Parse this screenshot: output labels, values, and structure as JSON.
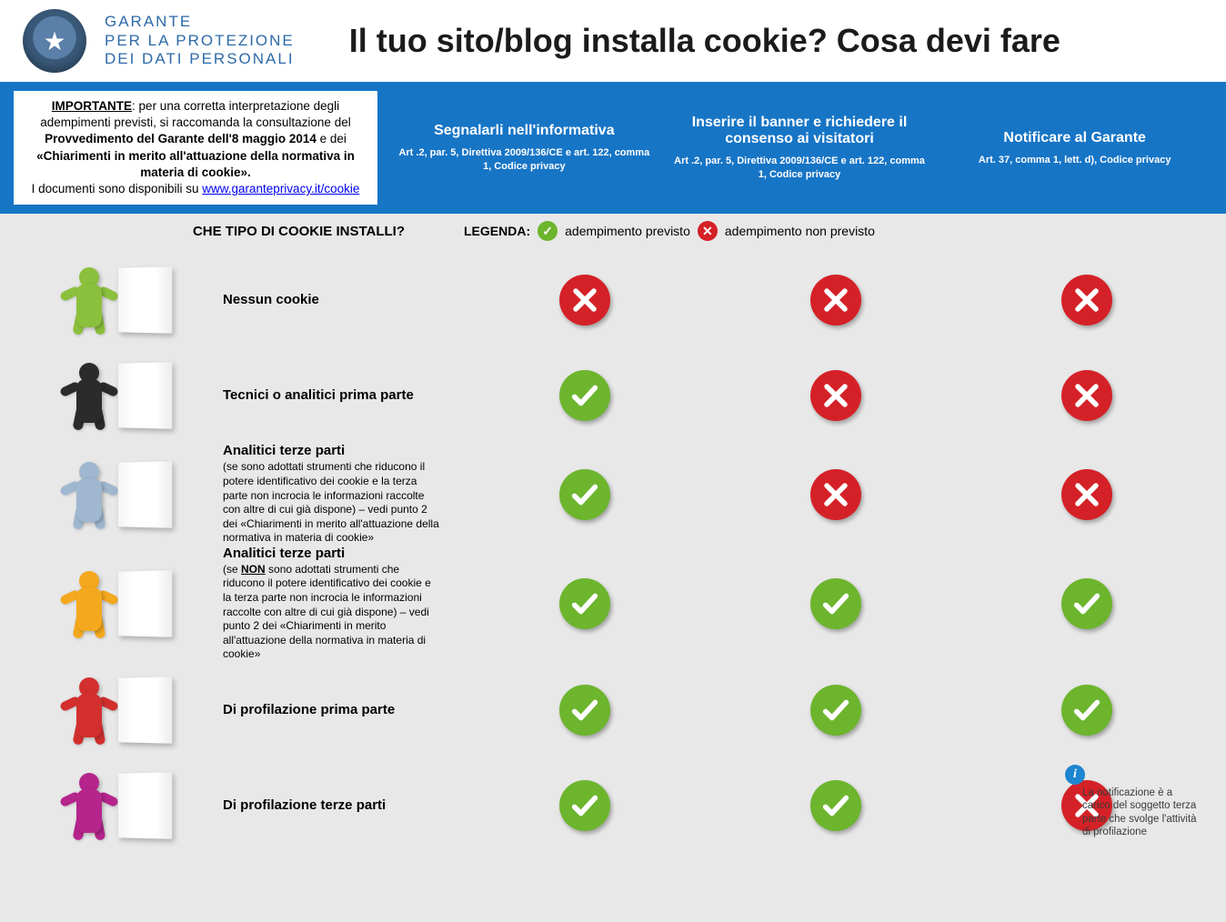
{
  "colors": {
    "blue_bar": "#1775c6",
    "green": "#6cb52d",
    "red": "#d42127",
    "bg": "#e8e8e8",
    "agency_blue": "#2d6aa8"
  },
  "header": {
    "agency_line1": "GARANTE",
    "agency_line2": "PER LA PROTEZIONE",
    "agency_line3": "DEI DATI PERSONALI",
    "title": "Il tuo sito/blog installa cookie? Cosa devi fare"
  },
  "note": {
    "lead": "IMPORTANTE",
    "text1": ": per una corretta interpretazione degli adempimenti previsti, si raccomanda la consultazione del ",
    "bold1": "Provvedimento del Garante dell'8 maggio 2014",
    "text2": " e dei ",
    "bold2": "«Chiarimenti in merito all'attuazione della normativa in materia di cookie».",
    "text3": "I documenti sono disponibili su ",
    "link": "www.garanteprivacy.it/cookie"
  },
  "columns": [
    {
      "title": "Segnalarli nell'informativa",
      "sub": "Art .2, par. 5, Direttiva 2009/136/CE e art. 122, comma 1, Codice privacy"
    },
    {
      "title": "Inserire il banner e richiedere il consenso ai visitatori",
      "sub": "Art .2, par. 5, Direttiva 2009/136/CE e art. 122, comma 1, Codice privacy"
    },
    {
      "title": "Notificare al Garante",
      "sub": "Art. 37, comma 1, lett. d), Codice privacy"
    }
  ],
  "legend": {
    "left": "CHE TIPO DI COOKIE INSTALLI?",
    "label": "LEGENDA:",
    "yes": "adempimento previsto",
    "no": "adempimento non previsto"
  },
  "rows": [
    {
      "color": "#8bc03c",
      "title": "Nessun cookie",
      "sub": "",
      "vals": [
        "no",
        "no",
        "no"
      ]
    },
    {
      "color": "#2b2b2b",
      "title": "Tecnici o analitici prima parte",
      "sub": "",
      "vals": [
        "yes",
        "no",
        "no"
      ]
    },
    {
      "color": "#9fb7cf",
      "title": "Analitici terze parti",
      "sub": "(se sono adottati strumenti che riducono il potere identificativo dei cookie e la terza parte non incrocia le informazioni raccolte con altre di cui già dispone) – vedi punto 2 dei «Chiarimenti in merito all'attuazione della normativa in materia di cookie»",
      "vals": [
        "yes",
        "no",
        "no"
      ]
    },
    {
      "color": "#f4a81d",
      "title": "Analitici terze parti",
      "sub": "(se <b><u>NON</u></b> sono adottati strumenti che riducono il potere identificativo dei cookie e la terza parte non incrocia le informazioni raccolte con altre di cui già dispone) – vedi punto 2 dei «Chiarimenti in merito all'attuazione della normativa in materia di cookie»",
      "vals": [
        "yes",
        "yes",
        "yes"
      ]
    },
    {
      "color": "#d32f2f",
      "title": "Di profilazione prima parte",
      "sub": "",
      "vals": [
        "yes",
        "yes",
        "yes"
      ]
    },
    {
      "color": "#b5258c",
      "title": "Di profilazione terze parti",
      "sub": "",
      "vals": [
        "yes",
        "yes",
        "no"
      ],
      "info": "La notificazione è a carico del soggetto terza parte  che svolge  l'attività di profilazione"
    }
  ]
}
